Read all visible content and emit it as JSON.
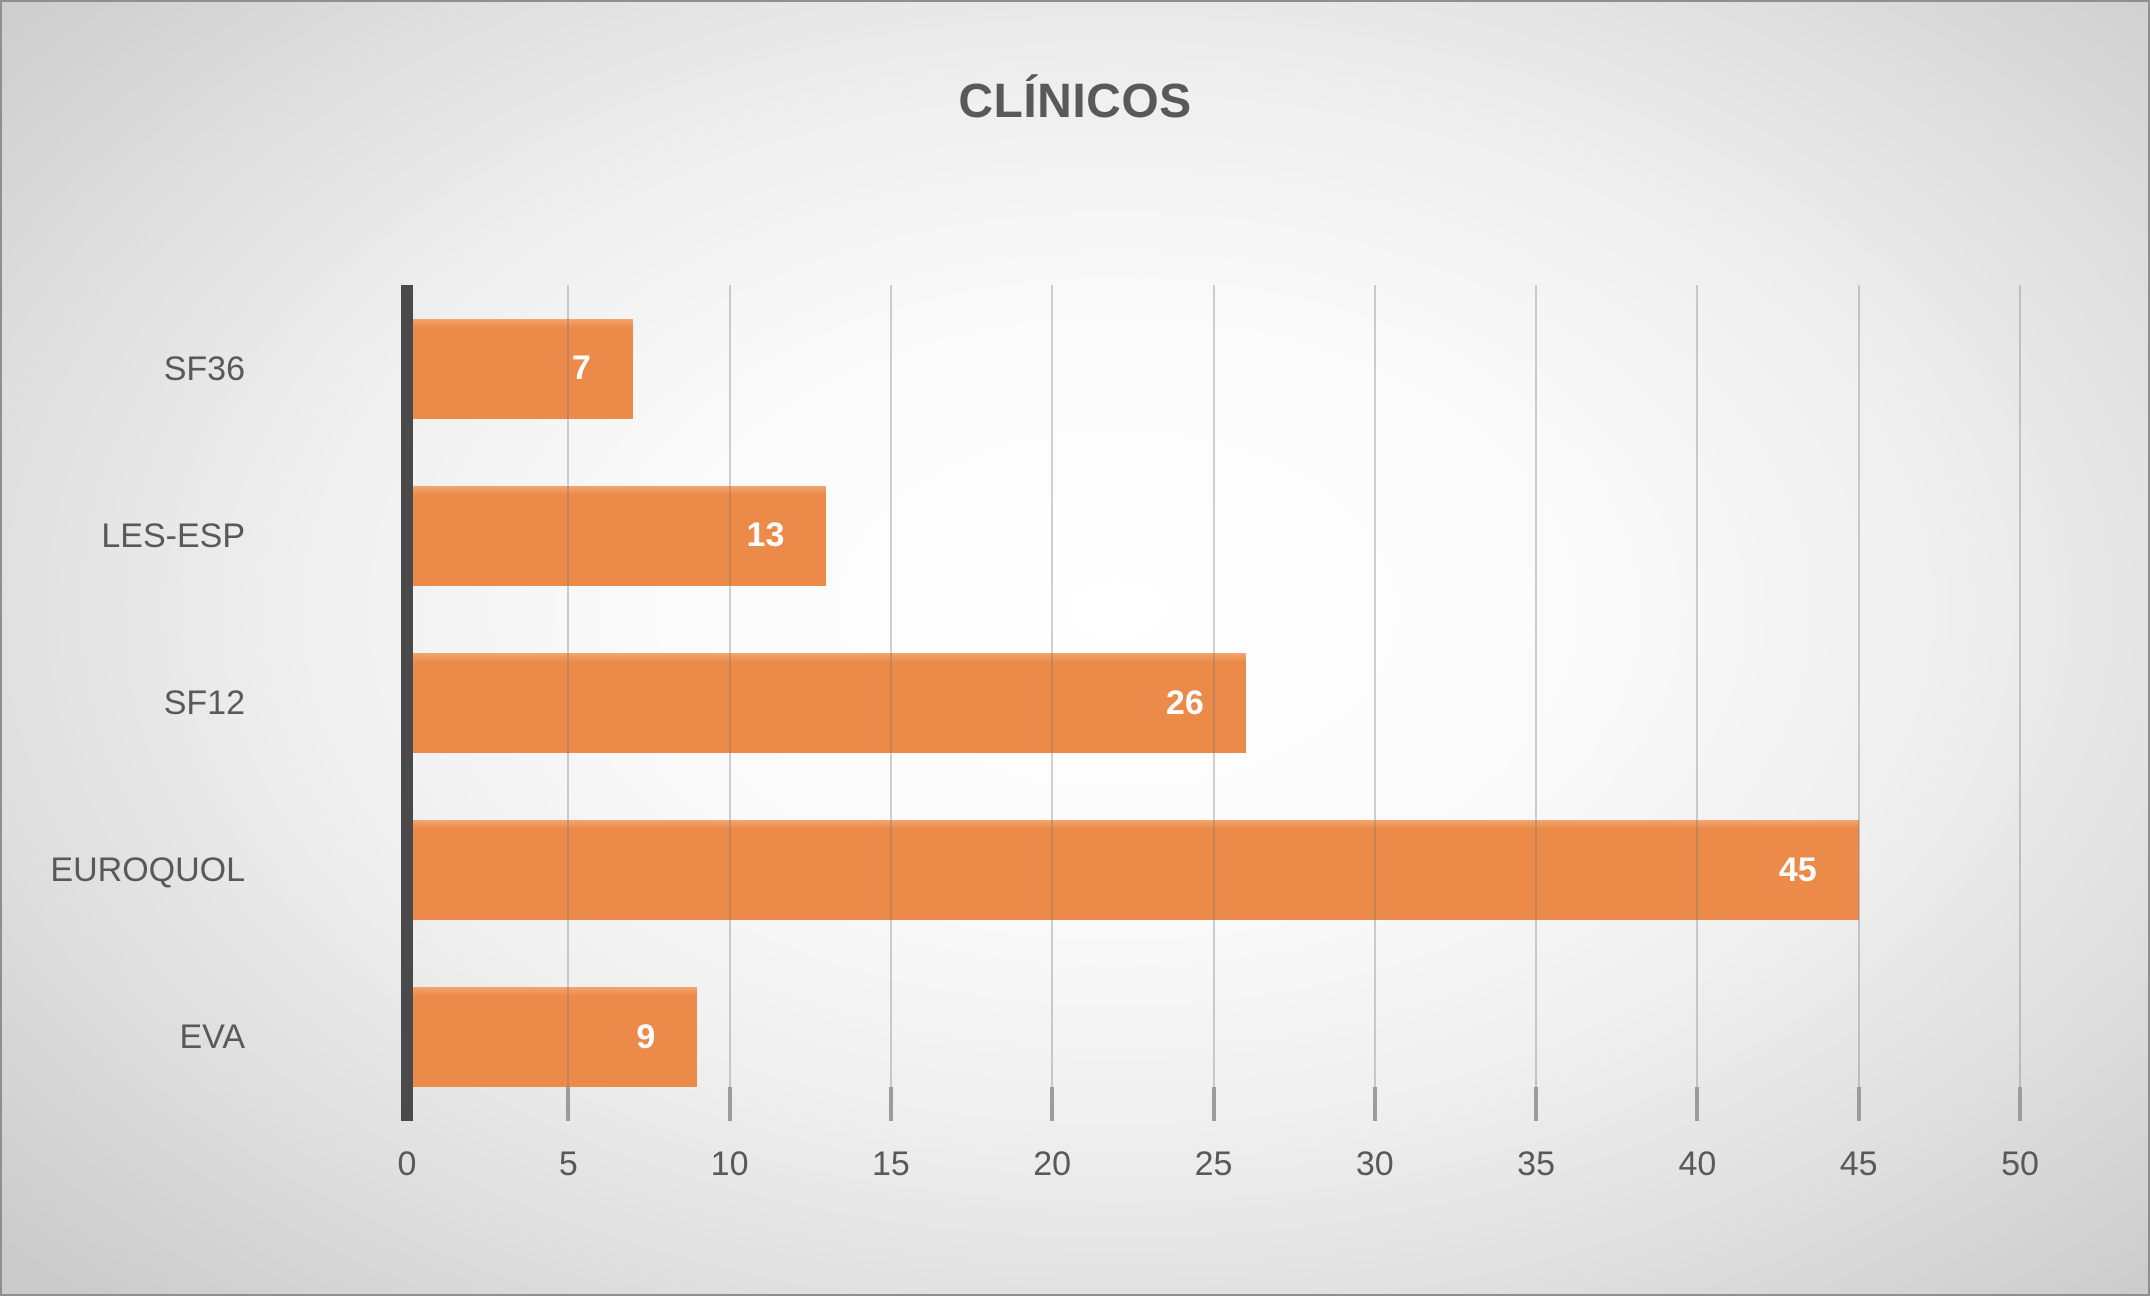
{
  "title": "CLÍNICOS",
  "chart_data": {
    "type": "bar",
    "orientation": "horizontal",
    "title": "CLÍNICOS",
    "categories": [
      "SF36",
      "LES-ESP",
      "SF12",
      "EUROQUOL",
      "EVA"
    ],
    "values": [
      7,
      13,
      26,
      45,
      9
    ],
    "data_labels": [
      7,
      13,
      26,
      45,
      9
    ],
    "data_label_position": "inside-end",
    "xlabel": "",
    "ylabel": "",
    "xlim": [
      0,
      50
    ],
    "x_ticks": [
      0,
      5,
      10,
      15,
      20,
      25,
      30,
      35,
      40,
      45,
      50
    ],
    "grid": true,
    "legend": false,
    "colors": {
      "bar": "#EC8B49",
      "bar_highlight": "#F4A570",
      "data_label_text": "#FDFDFD",
      "axis_line": "#4A4A4A",
      "tick_mark": "#9C9C9C",
      "axis_text": "#595959",
      "title_text": "#595959"
    }
  }
}
